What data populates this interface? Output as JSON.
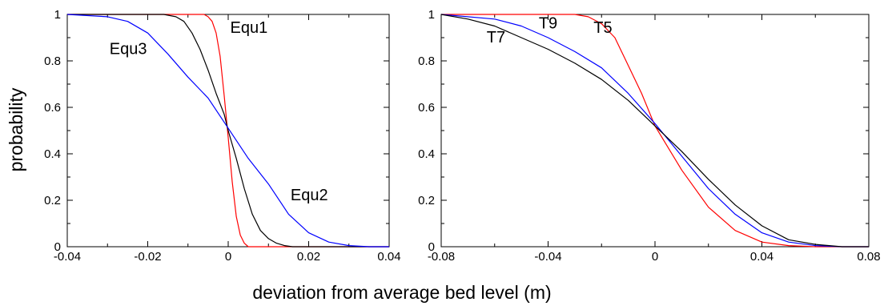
{
  "figure": {
    "xlabel": "deviation from average bed level (m)"
  },
  "chart_data": [
    {
      "type": "line",
      "title": "",
      "xlabel": "deviation from average bed level (m)",
      "ylabel": "probability",
      "xlim": [
        -0.04,
        0.04
      ],
      "ylim": [
        0,
        1
      ],
      "x_ticks": [
        -0.04,
        -0.02,
        0,
        0.02,
        0.04
      ],
      "x_tick_labels": [
        "-0.04",
        "-0.02",
        "0",
        "0.02",
        "0.04"
      ],
      "y_ticks": [
        0,
        0.2,
        0.4,
        0.6,
        0.8,
        1
      ],
      "y_tick_labels": [
        "0",
        "0.2",
        "0.4",
        "0.6",
        "0.8",
        "1"
      ],
      "grid": false,
      "legend": "none (inline labels)",
      "series": [
        {
          "name": "Equ1",
          "color": "#ff0000",
          "x": [
            -0.04,
            -0.006,
            -0.005,
            -0.004,
            -0.003,
            -0.002,
            -0.001,
            0,
            0.001,
            0.002,
            0.003,
            0.004,
            0.005,
            0.04
          ],
          "y": [
            1,
            1,
            0.99,
            0.97,
            0.92,
            0.82,
            0.65,
            0.47,
            0.28,
            0.13,
            0.05,
            0.015,
            0,
            0
          ]
        },
        {
          "name": "Equ2",
          "color": "#000000",
          "x": [
            -0.04,
            -0.016,
            -0.013,
            -0.011,
            -0.009,
            -0.007,
            -0.005,
            -0.003,
            -0.001,
            0,
            0.002,
            0.004,
            0.006,
            0.008,
            0.01,
            0.012,
            0.014,
            0.016,
            0.04
          ],
          "y": [
            1,
            1,
            0.99,
            0.97,
            0.92,
            0.85,
            0.76,
            0.66,
            0.57,
            0.5,
            0.38,
            0.25,
            0.14,
            0.07,
            0.035,
            0.015,
            0.005,
            0,
            0
          ]
        },
        {
          "name": "Equ3",
          "color": "#0000ff",
          "x": [
            -0.04,
            -0.03,
            -0.025,
            -0.02,
            -0.015,
            -0.01,
            -0.005,
            0,
            0.005,
            0.01,
            0.015,
            0.02,
            0.025,
            0.03,
            0.035,
            0.04
          ],
          "y": [
            1,
            0.99,
            0.97,
            0.92,
            0.83,
            0.73,
            0.64,
            0.51,
            0.38,
            0.27,
            0.14,
            0.06,
            0.02,
            0.005,
            0,
            0
          ]
        }
      ],
      "annotations": [
        {
          "text": "Equ1",
          "x": 0.0005,
          "y": 0.92
        },
        {
          "text": "Equ2",
          "x": 0.0155,
          "y": 0.2
        },
        {
          "text": "Equ3",
          "x": -0.0295,
          "y": 0.83
        }
      ]
    },
    {
      "type": "line",
      "title": "",
      "xlabel": "deviation from average bed level (m)",
      "ylabel": "",
      "xlim": [
        -0.08,
        0.08
      ],
      "ylim": [
        0,
        1
      ],
      "x_ticks": [
        -0.08,
        -0.04,
        0,
        0.04,
        0.08
      ],
      "x_tick_labels": [
        "-0.08",
        "-0.04",
        "0",
        "0.04",
        "0.08"
      ],
      "y_ticks": [
        0,
        0.2,
        0.4,
        0.6,
        0.8,
        1
      ],
      "y_tick_labels": [
        "0",
        "0.2",
        "0.4",
        "0.6",
        "0.8",
        "1"
      ],
      "grid": false,
      "legend": "none (inline labels)",
      "series": [
        {
          "name": "T5",
          "color": "#ff0000",
          "x": [
            -0.08,
            -0.03,
            -0.025,
            -0.02,
            -0.015,
            -0.01,
            -0.005,
            0,
            0.01,
            0.02,
            0.03,
            0.04,
            0.05,
            0.06,
            0.08
          ],
          "y": [
            1,
            1,
            0.99,
            0.96,
            0.9,
            0.78,
            0.66,
            0.52,
            0.33,
            0.17,
            0.07,
            0.02,
            0.005,
            0,
            0
          ]
        },
        {
          "name": "T9",
          "color": "#0000ff",
          "x": [
            -0.08,
            -0.06,
            -0.05,
            -0.04,
            -0.03,
            -0.02,
            -0.01,
            0,
            0.01,
            0.02,
            0.03,
            0.04,
            0.05,
            0.06,
            0.07,
            0.08
          ],
          "y": [
            1,
            0.98,
            0.95,
            0.9,
            0.84,
            0.77,
            0.66,
            0.53,
            0.39,
            0.25,
            0.14,
            0.06,
            0.02,
            0.005,
            0,
            0
          ]
        },
        {
          "name": "T7",
          "color": "#000000",
          "x": [
            -0.08,
            -0.07,
            -0.06,
            -0.05,
            -0.04,
            -0.03,
            -0.02,
            -0.01,
            0,
            0.01,
            0.02,
            0.03,
            0.04,
            0.05,
            0.06,
            0.07,
            0.08
          ],
          "y": [
            1,
            0.98,
            0.95,
            0.9,
            0.85,
            0.79,
            0.72,
            0.63,
            0.52,
            0.41,
            0.29,
            0.18,
            0.09,
            0.03,
            0.01,
            0,
            0
          ]
        }
      ],
      "annotations": [
        {
          "text": "T7",
          "x": -0.063,
          "y": 0.88
        },
        {
          "text": "T9",
          "x": -0.0435,
          "y": 0.94
        },
        {
          "text": "T5",
          "x": -0.023,
          "y": 0.92
        }
      ]
    }
  ]
}
